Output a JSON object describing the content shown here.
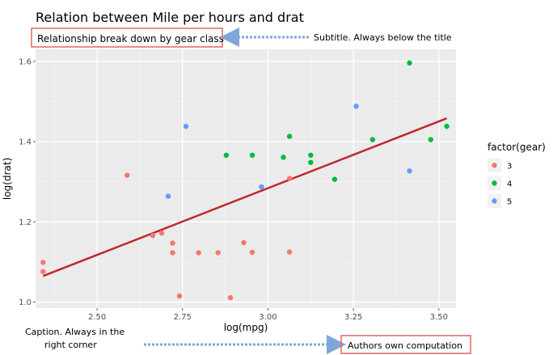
{
  "chart_data": {
    "type": "scatter",
    "title": "Relation between Mile per hours and drat",
    "subtitle": "Relationship break down by gear class",
    "caption": "Authors own computation",
    "xlabel": "log(mpg)",
    "ylabel": "log(drat)",
    "xlim": [
      2.32,
      3.55
    ],
    "ylim": [
      0.985,
      1.63
    ],
    "xticks": [
      {
        "value": 2.5,
        "label": "2.50"
      },
      {
        "value": 2.75,
        "label": "2.75"
      },
      {
        "value": 3.0,
        "label": "3.00"
      },
      {
        "value": 3.25,
        "label": "3.25"
      },
      {
        "value": 3.5,
        "label": "3.50"
      }
    ],
    "yticks": [
      {
        "value": 1.0,
        "label": "1.0"
      },
      {
        "value": 1.2,
        "label": "1.2"
      },
      {
        "value": 1.4,
        "label": "1.4"
      },
      {
        "value": 1.6,
        "label": "1.6"
      }
    ],
    "grid": true,
    "legend": {
      "title": "factor(gear)",
      "position": "right"
    },
    "series": [
      {
        "name": "3",
        "color": "#F8766D",
        "points": [
          [
            2.342,
            1.099
          ],
          [
            2.342,
            1.076
          ],
          [
            2.588,
            1.316
          ],
          [
            2.663,
            1.166
          ],
          [
            2.689,
            1.172
          ],
          [
            2.721,
            1.147
          ],
          [
            2.721,
            1.123
          ],
          [
            2.741,
            1.015
          ],
          [
            2.797,
            1.123
          ],
          [
            2.854,
            1.123
          ],
          [
            2.89,
            1.011
          ],
          [
            2.929,
            1.148
          ],
          [
            2.954,
            1.124
          ],
          [
            3.063,
            1.308
          ],
          [
            3.063,
            1.125
          ]
        ]
      },
      {
        "name": "4",
        "color": "#00BA38",
        "points": [
          [
            2.878,
            1.366
          ],
          [
            2.954,
            1.366
          ],
          [
            3.045,
            1.361
          ],
          [
            3.063,
            1.413
          ],
          [
            3.125,
            1.366
          ],
          [
            3.125,
            1.348
          ],
          [
            3.195,
            1.306
          ],
          [
            3.306,
            1.405
          ],
          [
            3.414,
            1.596
          ],
          [
            3.476,
            1.405
          ],
          [
            3.523,
            1.438
          ]
        ]
      },
      {
        "name": "5",
        "color": "#619CFF",
        "points": [
          [
            2.708,
            1.264
          ],
          [
            2.76,
            1.438
          ],
          [
            2.981,
            1.287
          ],
          [
            3.258,
            1.488
          ],
          [
            3.414,
            1.327
          ]
        ]
      }
    ],
    "trendline": {
      "color": "#C0282D",
      "x": [
        2.342,
        3.523
      ],
      "y": [
        1.065,
        1.458
      ]
    }
  },
  "annotations": {
    "subtitle_note": "Subtitle. Always below the title",
    "caption_note_line1": "Caption. Always in the",
    "caption_note_line2": "right corner"
  },
  "colors": {
    "panel_bg": "#EBEBEB",
    "annotation_box": "#E06666",
    "arrow": "#7FA6D8"
  }
}
